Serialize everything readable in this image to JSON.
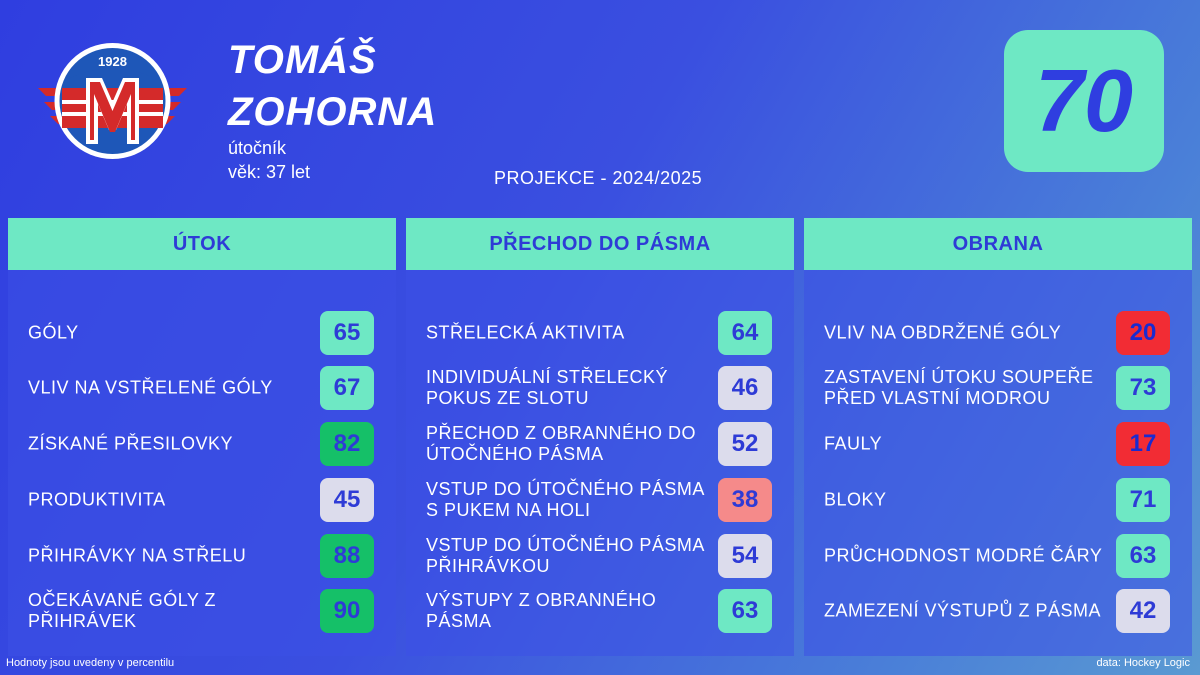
{
  "player": {
    "first_name": "Tomáš",
    "last_name": "Zohorna",
    "position": "útočník",
    "age": "věk: 37 let",
    "overall": "70"
  },
  "logo": {
    "year": "1928",
    "letter": "M"
  },
  "projection": "PROJEKCE - 2024/2025",
  "colors": {
    "accent": "#6ee8c4",
    "background": "#3140e0",
    "tier_mint": "#6ee8c4",
    "tier_green": "#15c068",
    "tier_grey": "#dcdcec",
    "tier_pink": "#f58a8a",
    "tier_red": "#f22c34",
    "number_text": "#2e3bd6"
  },
  "panels": [
    {
      "title": "ÚTOK",
      "rows": [
        {
          "label": "GÓLY",
          "value": "65",
          "tier": "mint"
        },
        {
          "label": "VLIV NA VSTŘELENÉ GÓLY",
          "value": "67",
          "tier": "mint"
        },
        {
          "label": "ZÍSKANÉ PŘESILOVKY",
          "value": "82",
          "tier": "green"
        },
        {
          "label": "PRODUKTIVITA",
          "value": "45",
          "tier": "grey"
        },
        {
          "label": "PŘIHRÁVKY NA STŘELU",
          "value": "88",
          "tier": "green"
        },
        {
          "label": "OČEKÁVANÉ GÓLY Z PŘIHRÁVEK",
          "value": "90",
          "tier": "green"
        }
      ]
    },
    {
      "title": "PŘECHOD DO PÁSMA",
      "rows": [
        {
          "label": "STŘELECKÁ AKTIVITA",
          "value": "64",
          "tier": "mint"
        },
        {
          "label": "INDIVIDUÁLNÍ STŘELECKÝ POKUS ZE SLOTU",
          "value": "46",
          "tier": "grey"
        },
        {
          "label": "PŘECHOD Z OBRANNÉHO DO ÚTOČNÉHO PÁSMA",
          "value": "52",
          "tier": "grey"
        },
        {
          "label": "VSTUP DO ÚTOČNÉHO PÁSMA S PUKEM NA HOLI",
          "value": "38",
          "tier": "pink"
        },
        {
          "label": "VSTUP DO ÚTOČNÉHO PÁSMA PŘIHRÁVKOU",
          "value": "54",
          "tier": "grey"
        },
        {
          "label": "VÝSTUPY Z OBRANNÉHO PÁSMA",
          "value": "63",
          "tier": "mint"
        }
      ]
    },
    {
      "title": "OBRANA",
      "rows": [
        {
          "label": "VLIV NA OBDRŽENÉ GÓLY",
          "value": "20",
          "tier": "red"
        },
        {
          "label": "ZASTAVENÍ ÚTOKU SOUPEŘE PŘED VLASTNÍ MODROU",
          "value": "73",
          "tier": "mint"
        },
        {
          "label": "FAULY",
          "value": "17",
          "tier": "red"
        },
        {
          "label": "BLOKY",
          "value": "71",
          "tier": "mint"
        },
        {
          "label": "PRŮCHODNOST MODRÉ ČÁRY",
          "value": "63",
          "tier": "mint"
        },
        {
          "label": "ZAMEZENÍ VÝSTUPŮ Z PÁSMA",
          "value": "42",
          "tier": "grey"
        }
      ]
    }
  ],
  "footer": {
    "note": "Hodnoty jsou uvedeny v percentilu",
    "source": "data: Hockey Logic"
  }
}
